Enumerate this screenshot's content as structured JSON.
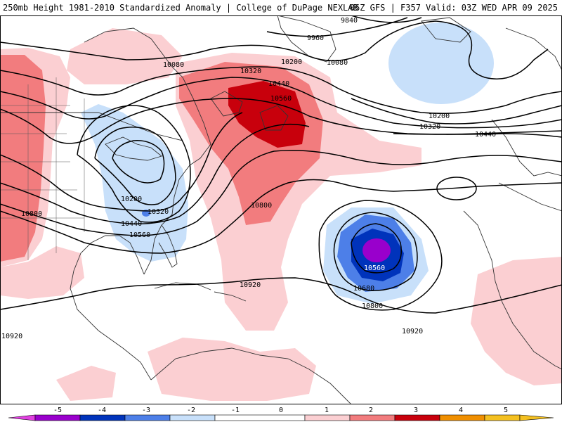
{
  "header": {
    "title_left": "250mb Height 1981-2010 Standardized Anomaly | College of DuPage NEXLAB",
    "title_right": "06Z GFS | F357 Valid: 03Z WED APR 09 2025"
  },
  "contour_labels": [
    {
      "id": "lbl-9840",
      "text": "9840"
    },
    {
      "id": "lbl-9960",
      "text": "9960"
    },
    {
      "id": "lbl-10080-w",
      "text": "10080"
    },
    {
      "id": "lbl-10080-e",
      "text": "10080"
    },
    {
      "id": "lbl-10200-n",
      "text": "10200"
    },
    {
      "id": "lbl-10320-n",
      "text": "10320"
    },
    {
      "id": "lbl-10440-n",
      "text": "10440"
    },
    {
      "id": "lbl-10560-n",
      "text": "10560"
    },
    {
      "id": "lbl-10200-e",
      "text": "10200"
    },
    {
      "id": "lbl-10320-e",
      "text": "10320"
    },
    {
      "id": "lbl-10440-e",
      "text": "10440"
    },
    {
      "id": "lbl-10200-fl",
      "text": "10200"
    },
    {
      "id": "lbl-10320-fl",
      "text": "10320"
    },
    {
      "id": "lbl-10440-fl",
      "text": "10440"
    },
    {
      "id": "lbl-10560-fl",
      "text": "10560"
    },
    {
      "id": "lbl-10800-w",
      "text": "10800"
    },
    {
      "id": "lbl-10800-c",
      "text": "10800"
    },
    {
      "id": "lbl-10920-c",
      "text": "10920"
    },
    {
      "id": "lbl-10560-low",
      "text": "10560"
    },
    {
      "id": "lbl-10680-low",
      "text": "10680"
    },
    {
      "id": "lbl-10800-low",
      "text": "10800"
    },
    {
      "id": "lbl-10920-s",
      "text": "10920"
    },
    {
      "id": "lbl-10920-sw",
      "text": "10920"
    }
  ],
  "colorbar": {
    "ticks": [
      "-5",
      "-4",
      "-3",
      "-2",
      "-1",
      "0",
      "1",
      "2",
      "3",
      "4",
      "5"
    ],
    "colors": {
      "minus5": "#e040e0",
      "minus4": "#9900cc",
      "minus3": "#0033bb",
      "minus2": "#4d7fe8",
      "minus1": "#c8e0fa",
      "zero": "#ffffff",
      "plus1": "#fbcfd2",
      "plus2": "#f27c7e",
      "plus3": "#c8000c",
      "plus4": "#f08f00",
      "plus5": "#f4c020"
    }
  }
}
